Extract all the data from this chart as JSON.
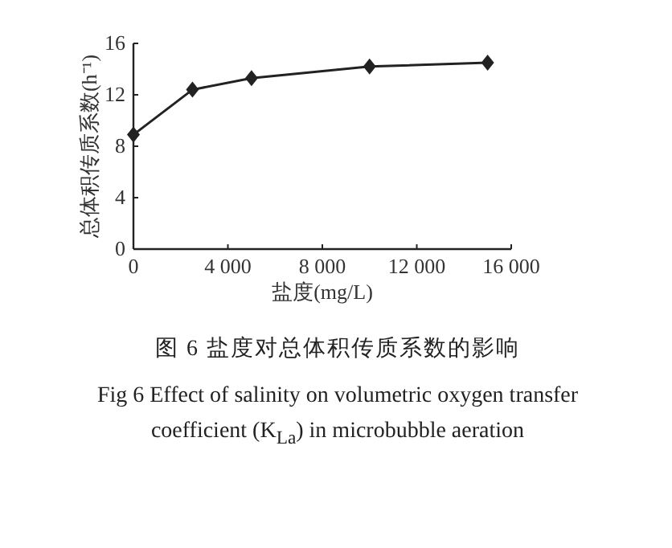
{
  "chart_data": {
    "type": "line",
    "xlabel": "盐度(mg/L)",
    "ylabel": "总体积传质系数(h⁻¹)",
    "x": [
      0,
      2500,
      5000,
      10000,
      15000
    ],
    "series": [
      {
        "color": "#222222",
        "values": [
          8.9,
          12.4,
          13.3,
          14.2,
          14.5
        ]
      }
    ],
    "xlim": [
      0,
      16000
    ],
    "xticks": [
      0,
      {
        "value": 4000,
        "label": "4 000"
      },
      {
        "value": 8000,
        "label": "8 000"
      },
      {
        "value": 12000,
        "label": "12 000"
      },
      {
        "value": 16000,
        "label": "16 000"
      }
    ],
    "ylim": [
      0,
      16
    ],
    "yticks": [
      0,
      4,
      8,
      12,
      16
    ],
    "marker": "diamond",
    "line_style": "solid",
    "grid": false,
    "annotations": [
      "图 6  盐度对总体积传质系数的影响",
      "Fig 6  Effect of salinity on volumetric oxygen transfer coefficient (K$_{La}$) in microbubble aeration"
    ]
  }
}
